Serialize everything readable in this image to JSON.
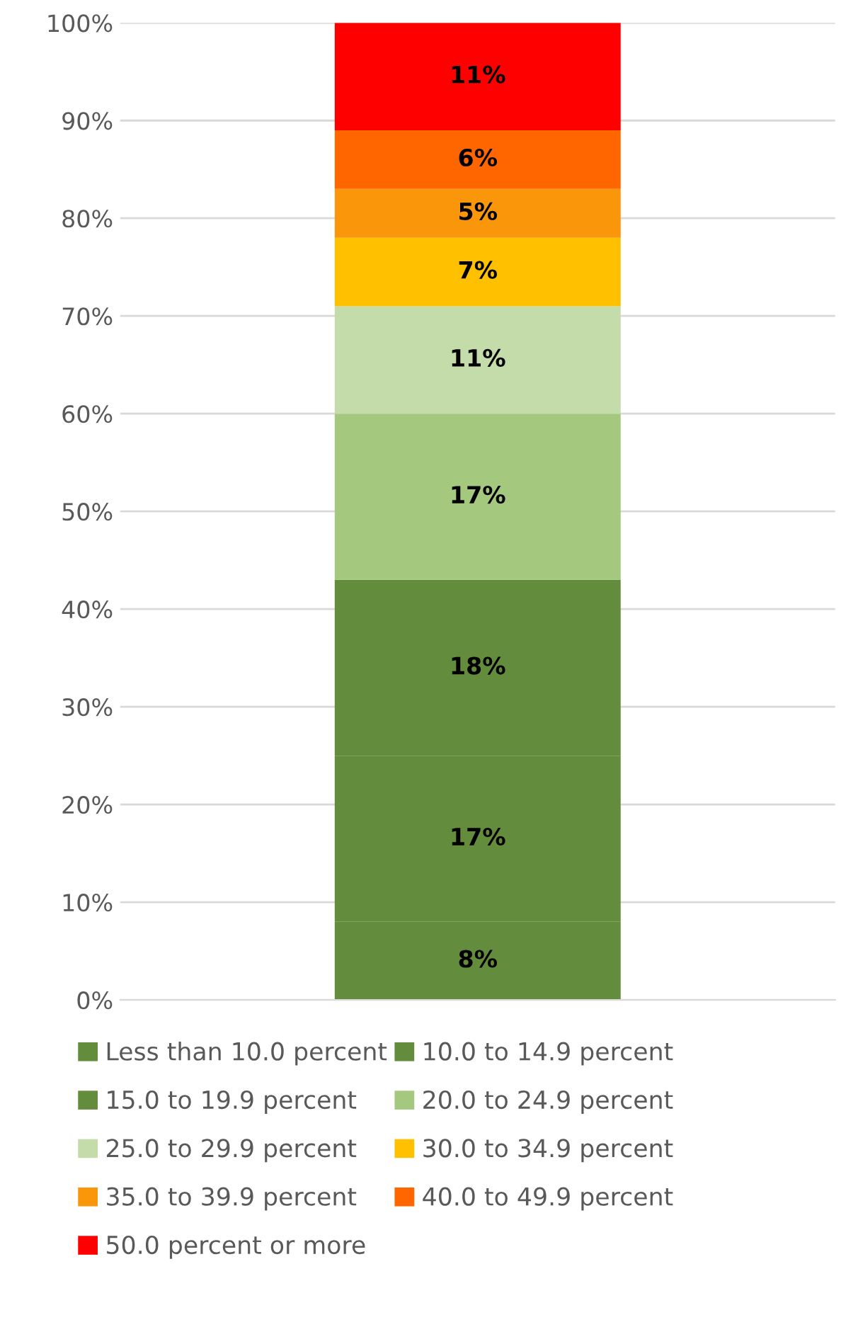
{
  "chart_data": {
    "type": "bar",
    "stacked": true,
    "categories": [
      null
    ],
    "series": [
      {
        "name": "Less than 10.0 percent",
        "color": "#638c3c",
        "values": [
          8
        ],
        "value_labels": [
          "8%"
        ]
      },
      {
        "name": "10.0 to 14.9 percent",
        "color": "#638c3c",
        "values": [
          17
        ],
        "value_labels": [
          "17%"
        ]
      },
      {
        "name": "15.0 to 19.9 percent",
        "color": "#638c3c",
        "values": [
          18
        ],
        "value_labels": [
          "18%"
        ]
      },
      {
        "name": "20.0 to 24.9 percent",
        "color": "#a3c87e",
        "values": [
          17
        ],
        "value_labels": [
          "17%"
        ]
      },
      {
        "name": "25.0 to 29.9 percent",
        "color": "#c4dcaa",
        "values": [
          11
        ],
        "value_labels": [
          "11%"
        ]
      },
      {
        "name": "30.0 to 34.9 percent",
        "color": "#ffc000",
        "values": [
          7
        ],
        "value_labels": [
          "7%"
        ]
      },
      {
        "name": "35.0 to 39.9 percent",
        "color": "#fa960a",
        "values": [
          5
        ],
        "value_labels": [
          "5%"
        ]
      },
      {
        "name": "40.0 to 49.9 percent",
        "color": "#ff6600",
        "values": [
          6
        ],
        "value_labels": [
          "6%"
        ]
      },
      {
        "name": "50.0 percent or more",
        "color": "#ff0000",
        "values": [
          11
        ],
        "value_labels": [
          "11%"
        ]
      }
    ],
    "ylim": [
      0,
      100
    ],
    "yticks": [
      {
        "value": 0,
        "label": "0%"
      },
      {
        "value": 10,
        "label": "10%"
      },
      {
        "value": 20,
        "label": "20%"
      },
      {
        "value": 30,
        "label": "30%"
      },
      {
        "value": 40,
        "label": "40%"
      },
      {
        "value": 50,
        "label": "50%"
      },
      {
        "value": 60,
        "label": "60%"
      },
      {
        "value": 70,
        "label": "70%"
      },
      {
        "value": 80,
        "label": "80%"
      },
      {
        "value": 90,
        "label": "90%"
      },
      {
        "value": 100,
        "label": "100%"
      }
    ],
    "grid": "y",
    "legend": "bottom",
    "tick_labels": "y"
  }
}
